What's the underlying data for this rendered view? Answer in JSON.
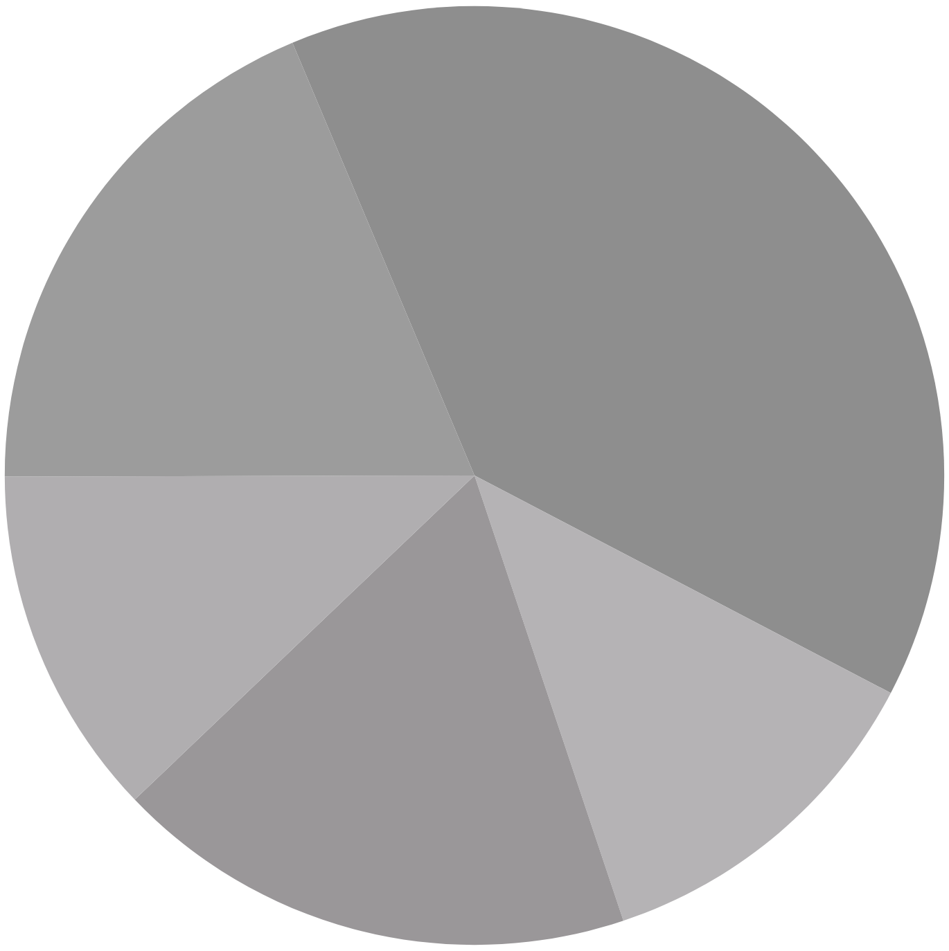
{
  "chart_data": {
    "type": "pie",
    "categories": [
      null,
      null,
      null,
      null,
      null
    ],
    "values": [
      39,
      12.2,
      18,
      12.1,
      18.7
    ],
    "colors": [
      "#8e8e8e",
      "#b5b3b5",
      "#9a9799",
      "#b0aeb0",
      "#9c9c9c"
    ]
  }
}
